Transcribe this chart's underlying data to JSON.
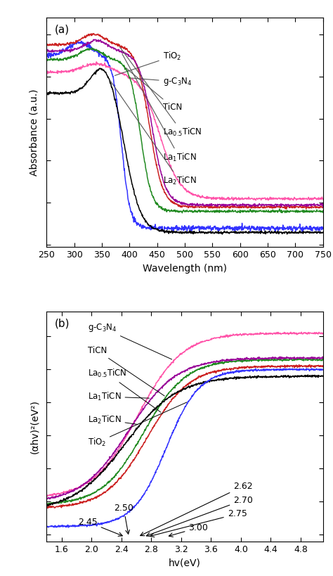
{
  "panel_a": {
    "xlabel": "Wavelength (nm)",
    "ylabel": "Absorbance (a.u.)",
    "xlim": [
      250,
      750
    ],
    "xticks": [
      250,
      300,
      350,
      400,
      450,
      500,
      550,
      600,
      650,
      700,
      750
    ],
    "colors": {
      "TiO2": "#3333ff",
      "gC3N4": "#ff55aa",
      "TiCN": "#228B22",
      "La05TiCN": "#cc2222",
      "La1TiCN": "#990099",
      "La2TiCN": "#000000"
    }
  },
  "panel_b": {
    "xlabel": "hv(eV)",
    "ylabel": "(αhv)²(eV²)",
    "xlim": [
      1.4,
      5.1
    ],
    "xticks": [
      1.6,
      2.0,
      2.4,
      2.8,
      3.2,
      3.6,
      4.0,
      4.4,
      4.8
    ],
    "colors": {
      "TiO2": "#3333ff",
      "gC3N4": "#ff55aa",
      "TiCN": "#228B22",
      "La05TiCN": "#cc2222",
      "La1TiCN": "#990099",
      "La2TiCN": "#000000"
    }
  }
}
